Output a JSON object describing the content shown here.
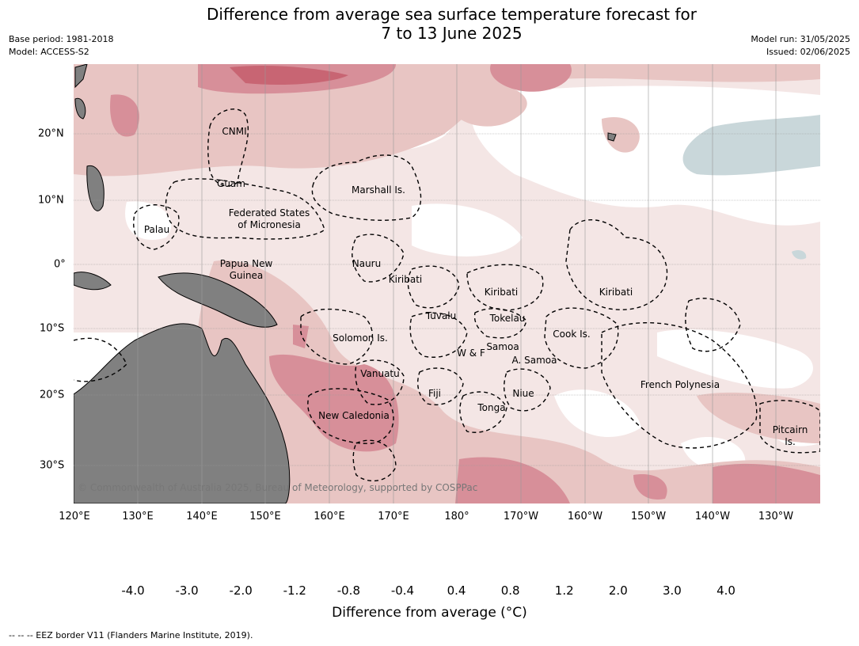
{
  "title_line1": "Difference from average sea surface temperature forecast for",
  "title_line2": "7 to 13 June 2025",
  "meta_left": [
    "Base period: 1981-2018",
    "Model: ACCESS-S2"
  ],
  "meta_right": [
    "Model run: 31/05/2025",
    "Issued: 02/06/2025"
  ],
  "lon_labels": [
    "120°E",
    "130°E",
    "140°E",
    "150°E",
    "160°E",
    "170°E",
    "180°",
    "170°W",
    "160°W",
    "150°W",
    "140°W",
    "130°W"
  ],
  "lat_labels": [
    "20°N",
    "10°N",
    "0°",
    "10°S",
    "20°S",
    "30°S"
  ],
  "region_labels": [
    "CNMI",
    "Guam",
    "Marshall Is.",
    "Federated States",
    "of Micronesia",
    "Palau",
    "Papua New",
    "Guinea",
    "Nauru",
    "Kiribati",
    "Kiribati",
    "Kiribati",
    "Tuvalu",
    "Tokelau",
    "Solomon Is.",
    "W & F",
    "Samoa",
    "A. Samoa",
    "Cook Is.",
    "Vanuatu",
    "Fiji",
    "Niue",
    "French Polynesia",
    "Tonga",
    "New Caledonia",
    "Pitcairn",
    "Is."
  ],
  "colorbar": {
    "title": "Difference from average (°C)",
    "ticks": [
      "-4.0",
      "-3.0",
      "-2.0",
      "-1.2",
      "-0.8",
      "-0.4",
      "0.4",
      "0.8",
      "1.2",
      "2.0",
      "3.0",
      "4.0"
    ],
    "colors": [
      "#4aa1b5",
      "#6cb0be",
      "#8ab9c3",
      "#a9c6cb",
      "#c9d7da",
      "#ffffff",
      "#f4e6e5",
      "#e8c5c3",
      "#d78f99",
      "#c86573",
      "#c0414f"
    ],
    "extend_low_color": "#3e818e",
    "extend_high_color": "#b51a37"
  },
  "watermark": "© Commonwealth of Australia 2025, Bureau of Meteorology, supported by COSPPac",
  "footer": "--  --  -- EEZ border V11 (Flanders Marine Institute, 2019)."
}
